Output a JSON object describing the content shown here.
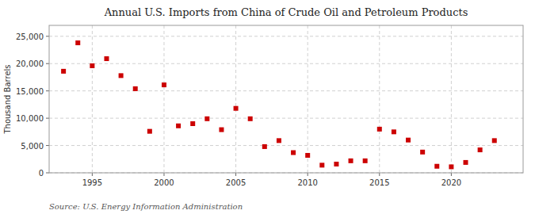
{
  "chart_data": {
    "type": "scatter",
    "title": "Annual U.S. Imports from China of Crude Oil and Petroleum Products",
    "ylabel": "Thousand Barrels",
    "source": "Source: U.S. Energy Information Administration",
    "x": [
      1993,
      1994,
      1995,
      1996,
      1997,
      1998,
      1999,
      2000,
      2001,
      2002,
      2003,
      2004,
      2005,
      2006,
      2007,
      2008,
      2009,
      2010,
      2011,
      2012,
      2013,
      2014,
      2015,
      2016,
      2017,
      2018,
      2019,
      2020,
      2021,
      2022,
      2023
    ],
    "values": [
      18600,
      23800,
      19600,
      20900,
      17800,
      15400,
      7600,
      16100,
      8600,
      9000,
      9900,
      7900,
      11800,
      9900,
      4800,
      5900,
      3700,
      3200,
      1400,
      1600,
      2200,
      2200,
      8000,
      7500,
      6000,
      3800,
      1200,
      1100,
      1900,
      4200,
      5900
    ],
    "color": "#cc0000",
    "marker": "square",
    "xlim": [
      1992,
      2025
    ],
    "xticks": [
      1995,
      2000,
      2005,
      2010,
      2015,
      2020
    ],
    "ylim": [
      0,
      27000
    ],
    "yticks": [
      0,
      {
        "value": 5000,
        "label": "5,000"
      },
      {
        "value": 10000,
        "label": "10,000"
      },
      {
        "value": 15000,
        "label": "15,000"
      },
      {
        "value": 20000,
        "label": "20,000"
      },
      {
        "value": 25000,
        "label": "25,000"
      }
    ],
    "grid": true
  }
}
